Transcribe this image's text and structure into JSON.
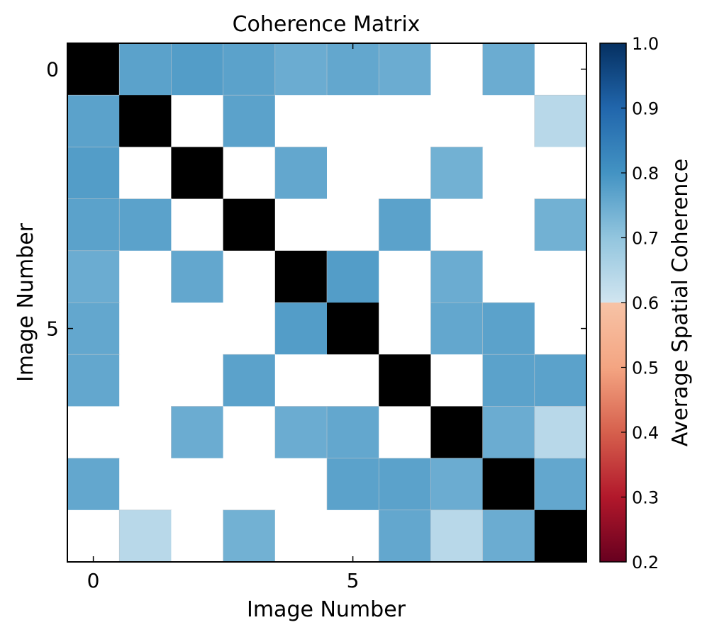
{
  "chart_data": {
    "type": "heatmap",
    "title": "Coherence Matrix",
    "xlabel": "Image Number",
    "ylabel": "Image Number",
    "x_ticks": [
      0,
      5
    ],
    "y_ticks": [
      0,
      5
    ],
    "size": 10,
    "diagonal_color": "#000000",
    "missing_color": "#ffffff",
    "values": [
      [
        null,
        0.77,
        0.78,
        0.77,
        0.75,
        0.76,
        0.75,
        null,
        0.75,
        null
      ],
      [
        0.77,
        null,
        null,
        0.77,
        null,
        null,
        null,
        null,
        null,
        0.64
      ],
      [
        0.78,
        null,
        null,
        null,
        0.76,
        null,
        null,
        0.74,
        null,
        null
      ],
      [
        0.77,
        0.77,
        null,
        null,
        null,
        null,
        0.77,
        null,
        null,
        0.74
      ],
      [
        0.75,
        null,
        0.76,
        null,
        null,
        0.78,
        null,
        0.75,
        null,
        null
      ],
      [
        0.76,
        null,
        null,
        null,
        0.78,
        null,
        null,
        0.76,
        0.77,
        null
      ],
      [
        0.76,
        null,
        null,
        0.77,
        null,
        null,
        null,
        null,
        0.77,
        0.77
      ],
      [
        null,
        null,
        0.75,
        null,
        0.75,
        0.76,
        null,
        null,
        0.75,
        0.64
      ],
      [
        0.76,
        null,
        null,
        null,
        null,
        0.77,
        0.77,
        0.75,
        null,
        0.76
      ],
      [
        null,
        0.64,
        null,
        0.74,
        null,
        null,
        0.76,
        0.64,
        0.75,
        null
      ]
    ],
    "colorbar": {
      "label": "Average Spatial Coherence",
      "min": 0.2,
      "max": 1.0,
      "ticks": [
        "0.2",
        "0.3",
        "0.4",
        "0.5",
        "0.6",
        "0.7",
        "0.8",
        "0.9",
        "1.0"
      ],
      "colormap": "RdBu"
    }
  }
}
